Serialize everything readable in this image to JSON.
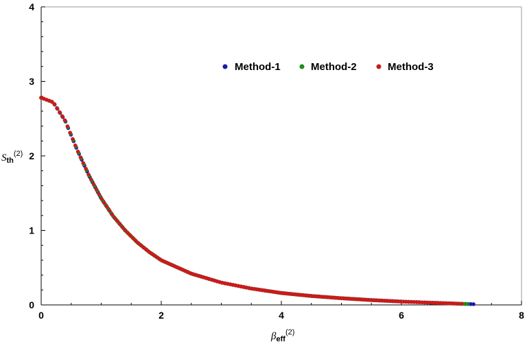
{
  "chart_data": {
    "type": "scatter",
    "xlim": [
      0,
      8
    ],
    "ylim": [
      0,
      4
    ],
    "x_ticks": [
      "0",
      "2",
      "4",
      "6",
      "8"
    ],
    "y_ticks": [
      "0",
      "1",
      "2",
      "3",
      "4"
    ],
    "xlabel": {
      "main": "β",
      "sub": "eff",
      "sup": "(2)"
    },
    "ylabel": {
      "main": "S",
      "sub": "th",
      "sup": "(2)"
    },
    "legend_position": "top-center",
    "grid": false,
    "series": [
      {
        "name": "Method-1",
        "color": "#1a1aa8",
        "x_max": 7.2
      },
      {
        "name": "Method-2",
        "color": "#1e8a1e",
        "x_max": 7.1
      },
      {
        "name": "Method-3",
        "color": "#cc1a1a",
        "x_max": 7.0
      }
    ],
    "curve_samples": [
      [
        0.0,
        2.78
      ],
      [
        0.2,
        2.72
      ],
      [
        0.4,
        2.47
      ],
      [
        0.6,
        2.08
      ],
      [
        0.8,
        1.73
      ],
      [
        1.0,
        1.43
      ],
      [
        1.2,
        1.19
      ],
      [
        1.4,
        1.0
      ],
      [
        1.6,
        0.84
      ],
      [
        1.8,
        0.71
      ],
      [
        2.0,
        0.6
      ],
      [
        2.5,
        0.42
      ],
      [
        3.0,
        0.3
      ],
      [
        3.5,
        0.22
      ],
      [
        4.0,
        0.16
      ],
      [
        4.5,
        0.12
      ],
      [
        5.0,
        0.09
      ],
      [
        5.5,
        0.065
      ],
      [
        6.0,
        0.045
      ],
      [
        6.5,
        0.03
      ],
      [
        7.0,
        0.015
      ],
      [
        7.2,
        0.01
      ]
    ]
  }
}
